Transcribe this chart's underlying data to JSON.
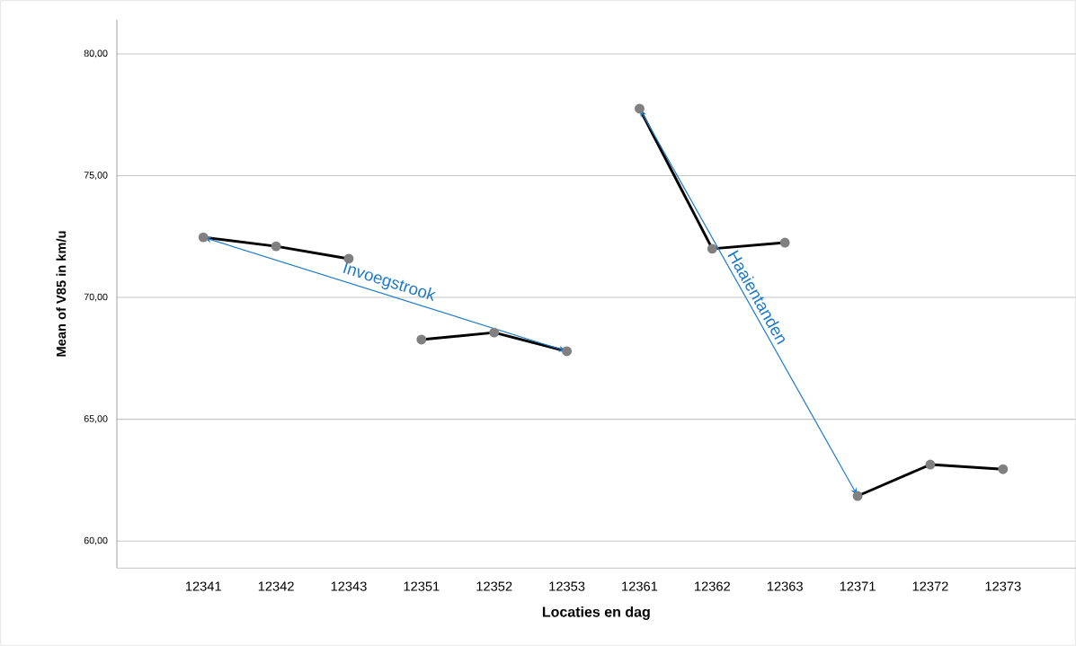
{
  "chart_data": {
    "type": "line",
    "xlabel": "Locaties en dag",
    "ylabel": "Mean of V85 in km/u",
    "categories": [
      "12341",
      "12342",
      "12343",
      "12351",
      "12352",
      "12353",
      "12361",
      "12362",
      "12363",
      "12371",
      "12372",
      "12373"
    ],
    "series": [
      {
        "color": "#000000",
        "values": [
          72.47,
          72.1,
          71.59,
          null,
          null,
          null,
          null,
          null,
          null,
          null,
          null,
          null
        ]
      },
      {
        "color": "#000000",
        "values": [
          null,
          null,
          null,
          68.27,
          68.56,
          67.79,
          null,
          null,
          null,
          null,
          null,
          null
        ]
      },
      {
        "color": "#000000",
        "values": [
          null,
          null,
          null,
          null,
          null,
          null,
          77.75,
          72.0,
          72.25,
          null,
          null,
          null
        ]
      },
      {
        "color": "#000000",
        "values": [
          null,
          null,
          null,
          null,
          null,
          null,
          null,
          null,
          null,
          61.85,
          63.14,
          62.95
        ]
      }
    ],
    "ylim": [
      58.9,
      81.4
    ],
    "yticks": [
      {
        "value": 60,
        "label": "60,00"
      },
      {
        "value": 65,
        "label": "65,00"
      },
      {
        "value": 70,
        "label": "70,00"
      },
      {
        "value": 75,
        "label": "75,00"
      },
      {
        "value": 80,
        "label": "80,00"
      }
    ],
    "grid": "y",
    "marker": "circle",
    "line_style": "solid",
    "annotations": [
      "Invoegstrook",
      "Haaientanden"
    ]
  }
}
